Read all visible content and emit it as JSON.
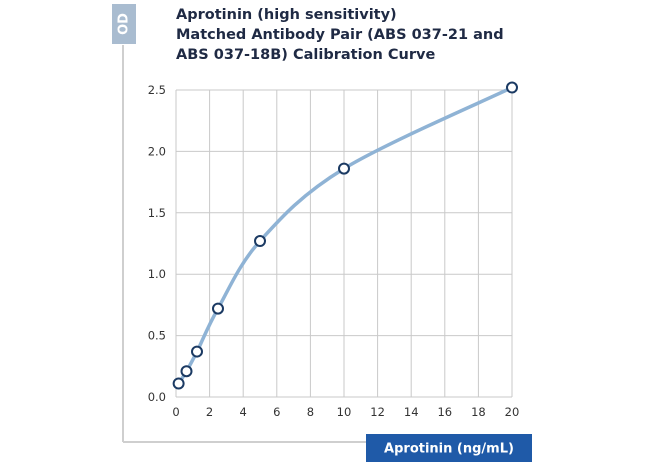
{
  "chart_data": {
    "type": "scatter",
    "title_lines": [
      "Aprotinin (high sensitivity)",
      "Matched Antibody Pair (ABS 037-21 and",
      "ABS 037-18B) Calibration Curve"
    ],
    "xlabel": "Aprotinin (ng/mL)",
    "ylabel": "OD",
    "xlim": [
      0,
      20
    ],
    "ylim": [
      0,
      2.5
    ],
    "xticks": [
      0,
      2,
      4,
      6,
      8,
      10,
      12,
      14,
      16,
      18,
      20
    ],
    "yticks": [
      0.0,
      0.5,
      1.0,
      1.5,
      2.0,
      2.5
    ],
    "xtick_labels": [
      "0",
      "2",
      "4",
      "6",
      "8",
      "10",
      "12",
      "14",
      "16",
      "18",
      "20"
    ],
    "ytick_labels": [
      "0.0",
      "0.5",
      "1.0",
      "1.5",
      "2.0",
      "2.5"
    ],
    "grid": true,
    "series": [
      {
        "x": [
          0.156,
          0.625,
          1.25,
          2.5,
          5,
          10,
          20
        ],
        "y": [
          0.11,
          0.21,
          0.37,
          0.72,
          1.27,
          1.86,
          2.52
        ]
      }
    ],
    "colors": {
      "curve": "#8fb3d5",
      "marker_edge": "#1b3a63",
      "accent": "#1f5aa8",
      "badge": "#a9bcd0",
      "grid": "#c9c9c9",
      "frame": "#cfcfcf",
      "title": "#1f2a44"
    }
  }
}
